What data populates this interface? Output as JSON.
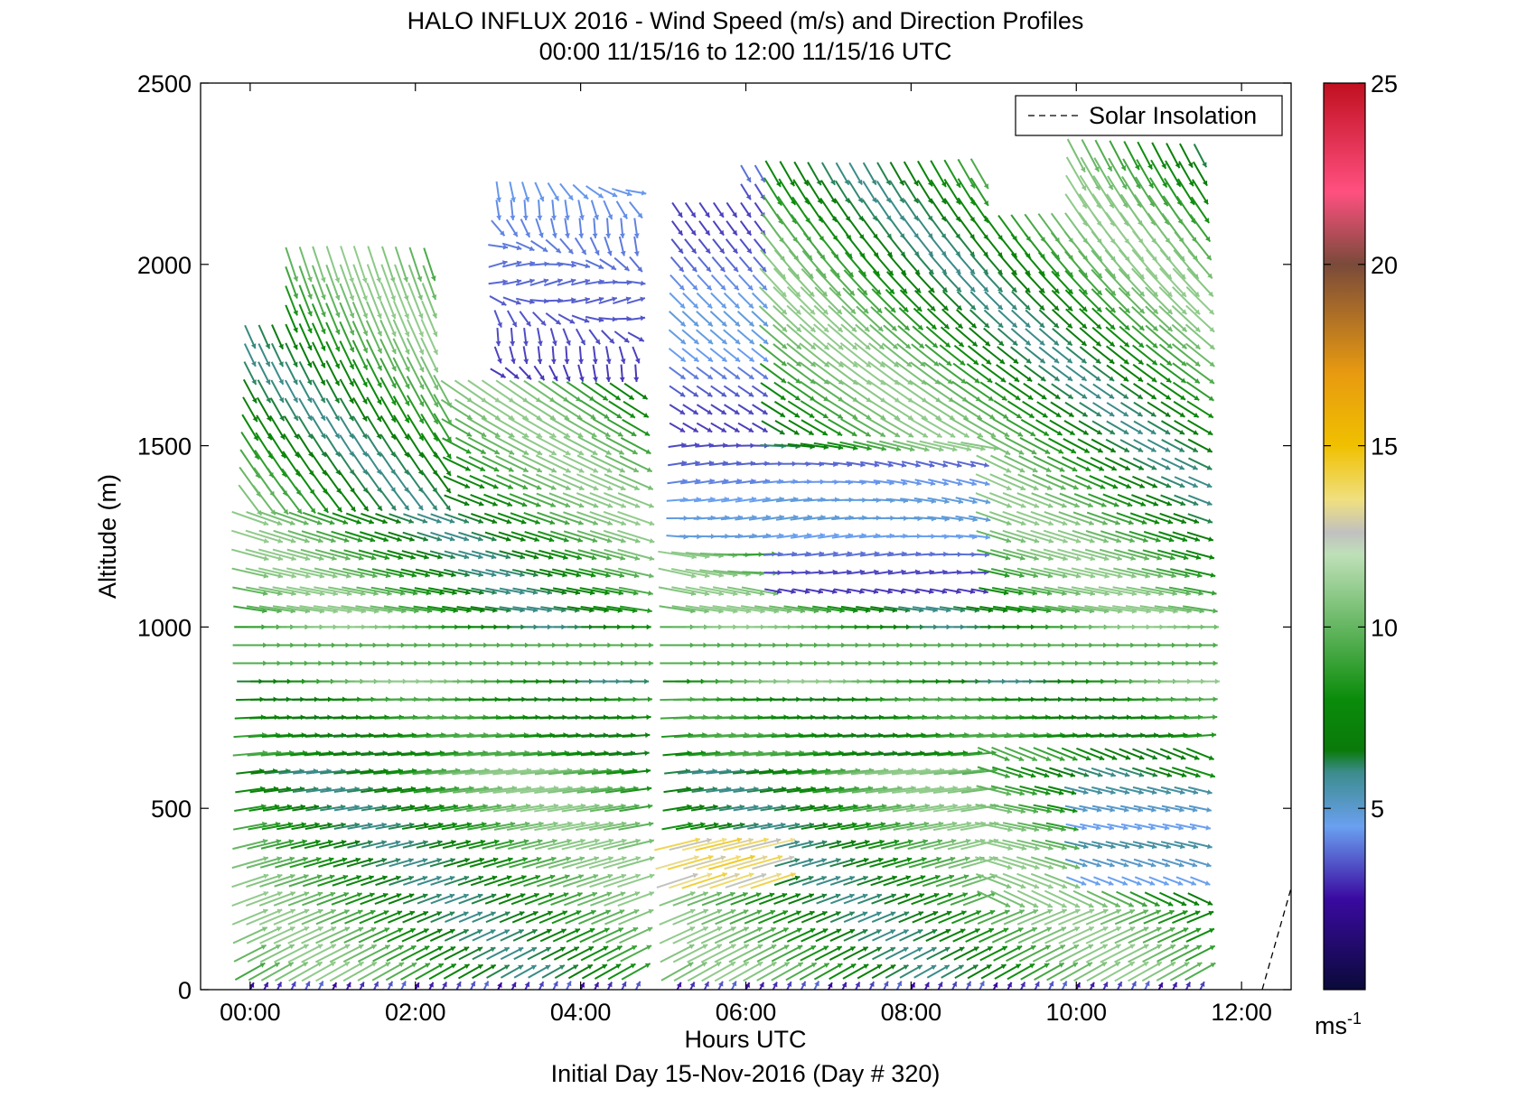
{
  "chart_data": {
    "type": "quiver",
    "title": "HALO INFLUX 2016 - Wind Speed (m/s) and Direction Profiles",
    "subtitle": "00:00 11/15/16 to 12:00 11/15/16  UTC",
    "xlabel": "Hours UTC",
    "xlabel2": "Initial Day 15-Nov-2016 (Day # 320)",
    "ylabel": "Altitude (m)",
    "xlim": [
      -0.6,
      12.6
    ],
    "ylim": [
      0,
      2500
    ],
    "xticks": [
      {
        "value": 0,
        "label": "00:00"
      },
      {
        "value": 2,
        "label": "02:00"
      },
      {
        "value": 4,
        "label": "04:00"
      },
      {
        "value": 6,
        "label": "06:00"
      },
      {
        "value": 8,
        "label": "08:00"
      },
      {
        "value": 10,
        "label": "10:00"
      },
      {
        "value": 12,
        "label": "12:00"
      }
    ],
    "yticks": [
      {
        "value": 0,
        "label": "0"
      },
      {
        "value": 500,
        "label": "500"
      },
      {
        "value": 1000,
        "label": "1000"
      },
      {
        "value": 1500,
        "label": "1500"
      },
      {
        "value": 2000,
        "label": "2000"
      },
      {
        "value": 2500,
        "label": "2500"
      }
    ],
    "legend": {
      "label": "Solar Insolation",
      "placement": "top-right"
    },
    "solar_insolation": {
      "x": [
        12.25,
        12.7
      ],
      "y": [
        0,
        280
      ]
    },
    "colorbar": {
      "min": 0,
      "max": 25,
      "ticks": [
        {
          "value": 5,
          "label": "5"
        },
        {
          "value": 10,
          "label": "10"
        },
        {
          "value": 15,
          "label": "15"
        },
        {
          "value": 20,
          "label": "20"
        },
        {
          "value": 25,
          "label": "25"
        }
      ],
      "unit_label": "ms",
      "unit_exponent": "-1",
      "stops": [
        {
          "v": 0,
          "color": "#0a0a3a"
        },
        {
          "v": 2.5,
          "color": "#3a0aa0"
        },
        {
          "v": 4.5,
          "color": "#6aa0f0"
        },
        {
          "v": 6,
          "color": "#3c8c8c"
        },
        {
          "v": 6.6,
          "color": "#0a7a0a"
        },
        {
          "v": 8,
          "color": "#0a8c0a"
        },
        {
          "v": 12,
          "color": "#bfe0b8"
        },
        {
          "v": 12.6,
          "color": "#c0c0c0"
        },
        {
          "v": 13.5,
          "color": "#f0e080"
        },
        {
          "v": 15,
          "color": "#f0c000"
        },
        {
          "v": 17,
          "color": "#e89a10"
        },
        {
          "v": 20,
          "color": "#7a4a3a"
        },
        {
          "v": 22,
          "color": "#ff5080"
        },
        {
          "v": 25,
          "color": "#c01020"
        }
      ]
    },
    "profile_hours": [
      0,
      0.17,
      0.33,
      0.5,
      0.67,
      0.83,
      1.0,
      1.17,
      1.33,
      1.5,
      1.67,
      1.83,
      2.0,
      2.17,
      2.33,
      2.5,
      2.67,
      2.83,
      3.0,
      3.17,
      3.33,
      3.5,
      3.67,
      3.83,
      4.0,
      4.17,
      4.33,
      4.5,
      4.67,
      5.17,
      5.33,
      5.5,
      5.67,
      5.83,
      6.0,
      6.17,
      6.33,
      6.5,
      6.67,
      6.83,
      7.0,
      7.17,
      7.33,
      7.5,
      7.67,
      7.83,
      8.0,
      8.17,
      8.33,
      8.5,
      8.67,
      8.83,
      9.0,
      9.17,
      9.33,
      9.5,
      9.67,
      9.83,
      10.0,
      10.17,
      10.33,
      10.5,
      10.67,
      10.83,
      11.0,
      11.17,
      11.33,
      11.5
    ],
    "altitude_step_m": 50,
    "top_altitudes_m": [
      {
        "from_hour": 0,
        "to_hour": 0.5,
        "top": 1800
      },
      {
        "from_hour": 0.5,
        "to_hour": 2.3,
        "top": 2000
      },
      {
        "from_hour": 2.3,
        "to_hour": 3.0,
        "top": 1650
      },
      {
        "from_hour": 3.0,
        "to_hour": 4.7,
        "top": 2200
      },
      {
        "from_hour": 5.1,
        "to_hour": 6.0,
        "top": 2150
      },
      {
        "from_hour": 6.0,
        "to_hour": 9.0,
        "top": 2250
      },
      {
        "from_hour": 9.0,
        "to_hour": 10.0,
        "top": 2100
      },
      {
        "from_hour": 10.0,
        "to_hour": 11.6,
        "top": 2300
      }
    ],
    "wind_speed_regimes_ms": [
      {
        "hours": "00:00-04:40",
        "altitude_m": "0-30",
        "speed": 3
      },
      {
        "hours": "00:00-02:30",
        "altitude_m": "30-2000",
        "speed": 8.5
      },
      {
        "hours": "00:00-04:40",
        "altitude_m": "850-1000",
        "speed": 9.5
      },
      {
        "hours": "03:00-04:40",
        "altitude_m": "1650-2200",
        "speed": 3.5
      },
      {
        "hours": "05:10-06:20",
        "altitude_m": "1200-2150",
        "speed": 4
      },
      {
        "hours": "06:20-09:00",
        "altitude_m": "1050-1500",
        "speed": 4
      },
      {
        "hours": "05:10-06:30",
        "altitude_m": "250-450",
        "speed": 13.5
      },
      {
        "hours": "06:00-11:30",
        "altitude_m": "600-1000",
        "speed": 8.5
      },
      {
        "hours": "10:00-11:30",
        "altitude_m": "250-550",
        "speed": 5
      },
      {
        "hours": "09:00-11:30",
        "altitude_m": "1600-2300",
        "speed": 9
      }
    ]
  }
}
